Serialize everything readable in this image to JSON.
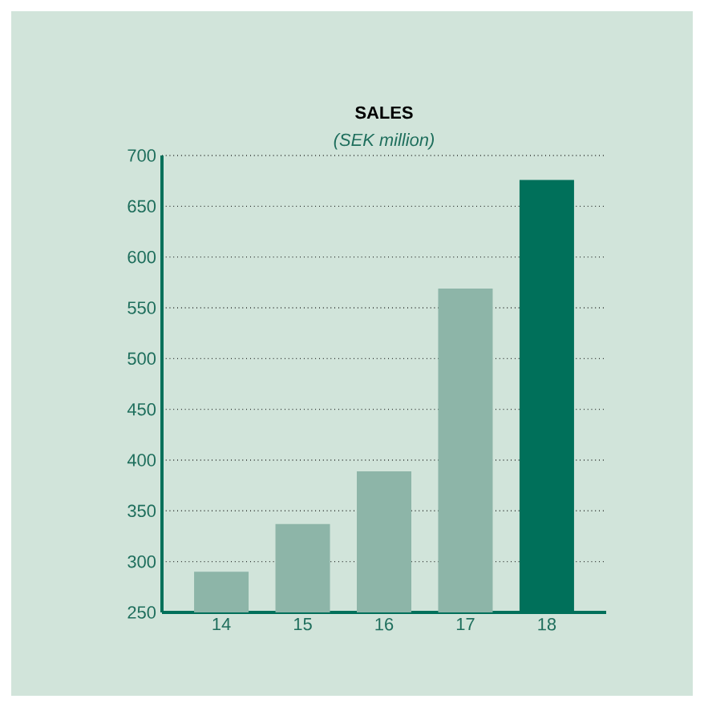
{
  "chart_data": {
    "type": "bar",
    "title": "SALES",
    "subtitle": "(SEK million)",
    "categories": [
      "14",
      "15",
      "16",
      "17",
      "18"
    ],
    "values": [
      290,
      337,
      389,
      569,
      676
    ],
    "colors": [
      "#8db5a8",
      "#8db5a8",
      "#8db5a8",
      "#8db5a8",
      "#00705a"
    ],
    "ylim": [
      250,
      700
    ],
    "yticks": [
      250,
      300,
      350,
      400,
      450,
      500,
      550,
      600,
      650,
      700
    ],
    "grid": "y"
  }
}
